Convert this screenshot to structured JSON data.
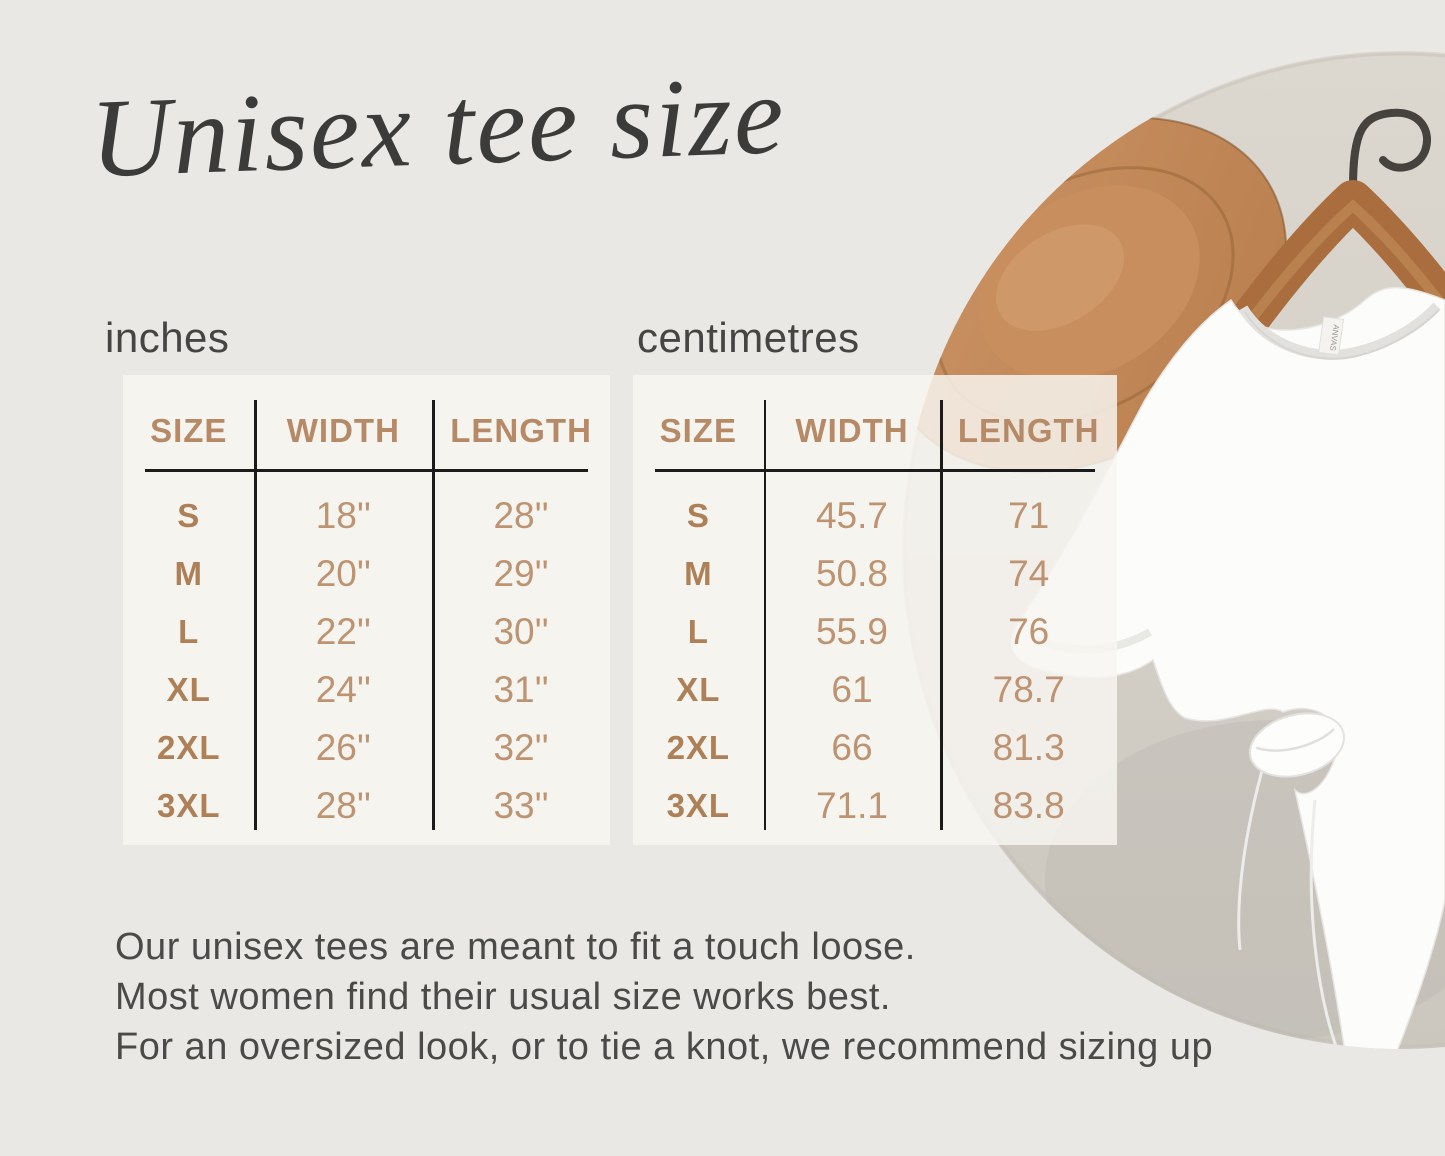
{
  "title": "Unisex tee size",
  "tables": [
    {
      "unit_label": "inches",
      "headers": [
        "SIZE",
        "WIDTH",
        "LENGTH"
      ],
      "rows": [
        [
          "S",
          "18''",
          "28''"
        ],
        [
          "M",
          "20''",
          "29''"
        ],
        [
          "L",
          "22''",
          "30''"
        ],
        [
          "XL",
          "24''",
          "31''"
        ],
        [
          "2XL",
          "26''",
          "32''"
        ],
        [
          "3XL",
          "28''",
          "33''"
        ]
      ]
    },
    {
      "unit_label": "centimetres",
      "headers": [
        "SIZE",
        "WIDTH",
        "LENGTH"
      ],
      "rows": [
        [
          "S",
          "45.7",
          "71"
        ],
        [
          "M",
          "50.8",
          "74"
        ],
        [
          "L",
          "55.9",
          "76"
        ],
        [
          "XL",
          "61",
          "78.7"
        ],
        [
          "2XL",
          "66",
          "81.3"
        ],
        [
          "3XL",
          "71.1",
          "83.8"
        ]
      ]
    }
  ],
  "notes": [
    "Our unisex tees are meant to fit a touch loose.",
    "Most women find their usual size works best.",
    "For an oversized look, or to tie a knot, we recommend sizing up"
  ],
  "photo": {
    "tag_text": "ANVAS"
  },
  "colors": {
    "page_background": "#eae8e4",
    "panel_background": "#f5f4ef",
    "table_line": "#1b1b1b",
    "header_tan": "#b68a67",
    "value_tan": "#bd9372",
    "title_charcoal": "#3b3b39",
    "backdrop_beige": "#d6d2ca",
    "hat_tan": "#c68f62",
    "hanger_wood": "#a96d3e",
    "tee_white": "#fcfcfb"
  }
}
